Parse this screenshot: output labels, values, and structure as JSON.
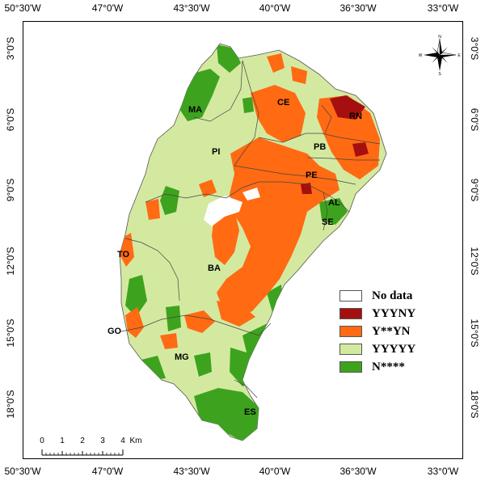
{
  "axes": {
    "top_ticks": [
      "50°30'W",
      "47°0'W",
      "43°30'W",
      "40°0'W",
      "36°30'W",
      "33°0'W"
    ],
    "bottom_ticks": [
      "50°30'W",
      "47°0'W",
      "43°30'W",
      "40°0'W",
      "36°30'W",
      "33°0'W"
    ],
    "left_ticks": [
      "3°0'S",
      "6°0'S",
      "9°0'S",
      "12°0'S",
      "15°0'S",
      "18°0'S"
    ],
    "right_ticks": [
      "3°0'S",
      "6°0'S",
      "9°0'S",
      "12°0'S",
      "15°0'S",
      "18°0'S"
    ]
  },
  "states": [
    "MA",
    "CE",
    "RN",
    "PI",
    "PB",
    "PE",
    "AL",
    "SE",
    "TO",
    "BA",
    "GO",
    "MG",
    "ES"
  ],
  "legend": [
    {
      "label": "No data",
      "color": "#ffffff"
    },
    {
      "label": "YYYNY",
      "color": "#a50f0f"
    },
    {
      "label": "Y**YN",
      "color": "#ff6a13"
    },
    {
      "label": "YYYYY",
      "color": "#d4e9a0"
    },
    {
      "label": "N****",
      "color": "#3da31e"
    }
  ],
  "scale_bar": {
    "labels": [
      "0",
      "1",
      "2",
      "3",
      "4"
    ],
    "unit": "Km"
  },
  "north_arrow": {
    "letters": [
      "N",
      "E",
      "S",
      "W"
    ],
    "icon": "compass-rose-icon"
  }
}
